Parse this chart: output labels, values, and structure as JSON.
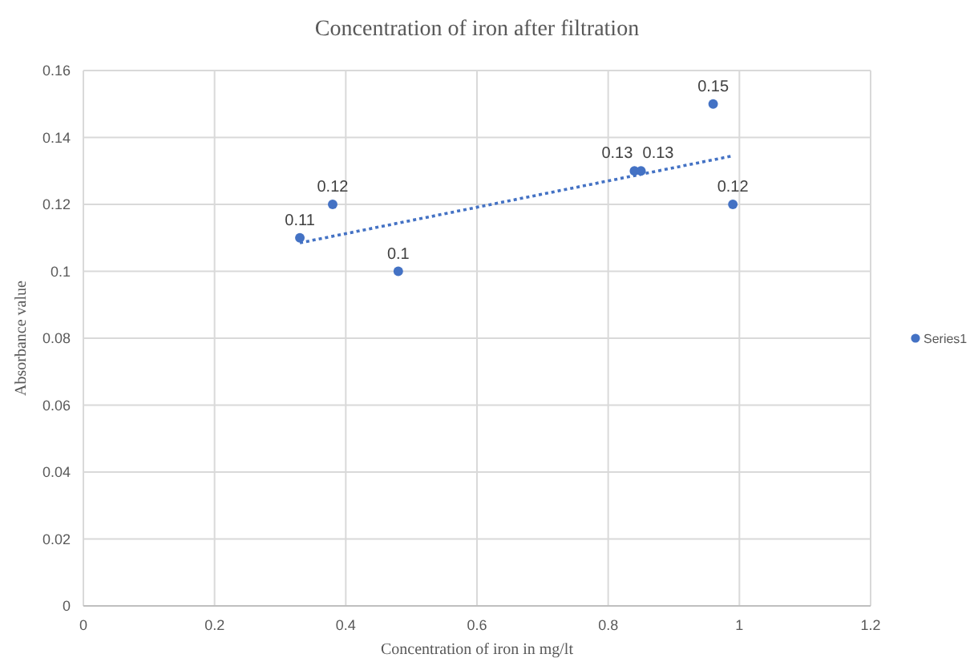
{
  "chart_data": {
    "type": "scatter",
    "title": "Concentration of iron after filtration",
    "xlabel": "Concentration of iron in mg/lt",
    "ylabel": "Absorbance value",
    "series": [
      {
        "name": "Series1",
        "color": "#4472c4",
        "x": [
          0.33,
          0.38,
          0.48,
          0.84,
          0.85,
          0.96,
          0.99
        ],
        "values": [
          0.11,
          0.12,
          0.1,
          0.13,
          0.13,
          0.15,
          0.12
        ],
        "value_labels": [
          "0.11",
          "0.12",
          "0.1",
          "0.13",
          "0.13",
          "0.15",
          "0.12"
        ]
      },
      {
        "type": "line",
        "color": "#4472c4",
        "line_style": "dotted",
        "marker": "none",
        "x": [
          0.33,
          0.99
        ],
        "values": [
          0.1085,
          0.1345
        ]
      }
    ],
    "xlim": [
      0,
      1.2
    ],
    "xticks": [
      0,
      0.2,
      0.4,
      0.6,
      0.8,
      1,
      1.2
    ],
    "ylim": [
      0,
      0.16
    ],
    "yticks": [
      0,
      0.02,
      0.04,
      0.06,
      0.08,
      0.1,
      0.12,
      0.14,
      0.16
    ],
    "grid": true,
    "legend": "right",
    "marker": "circle"
  }
}
